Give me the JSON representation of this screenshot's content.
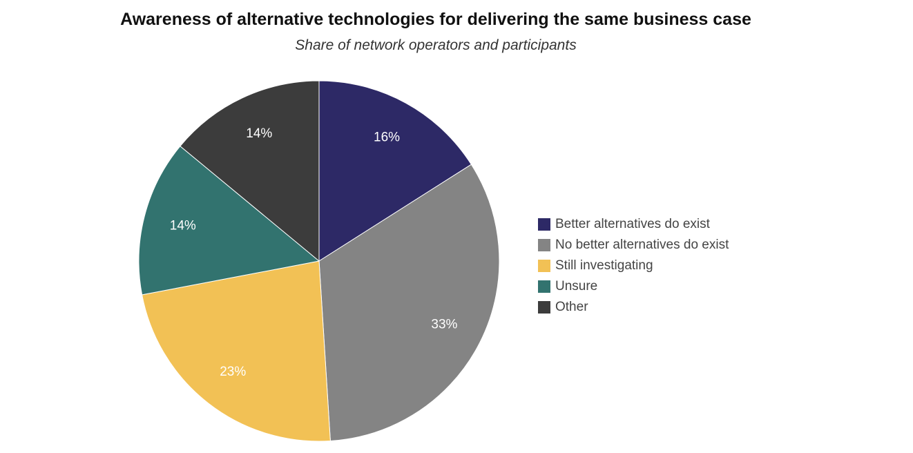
{
  "chart_data": {
    "type": "pie",
    "title": "Awareness of alternative technologies for delivering the same business case",
    "subtitle": "Share of network operators and participants",
    "slices": [
      {
        "label": "Better alternatives do exist",
        "value": 16,
        "value_label": "16%",
        "color": "#2d2966"
      },
      {
        "label": "No better alternatives do exist",
        "value": 33,
        "value_label": "33%",
        "color": "#848484"
      },
      {
        "label": "Still investigating",
        "value": 23,
        "value_label": "23%",
        "color": "#f2c155"
      },
      {
        "label": "Unsure",
        "value": 14,
        "value_label": "14%",
        "color": "#32736f"
      },
      {
        "label": "Other",
        "value": 14,
        "value_label": "14%",
        "color": "#3c3c3c"
      }
    ],
    "start_angle": "top, clockwise",
    "legend_position": "right"
  }
}
